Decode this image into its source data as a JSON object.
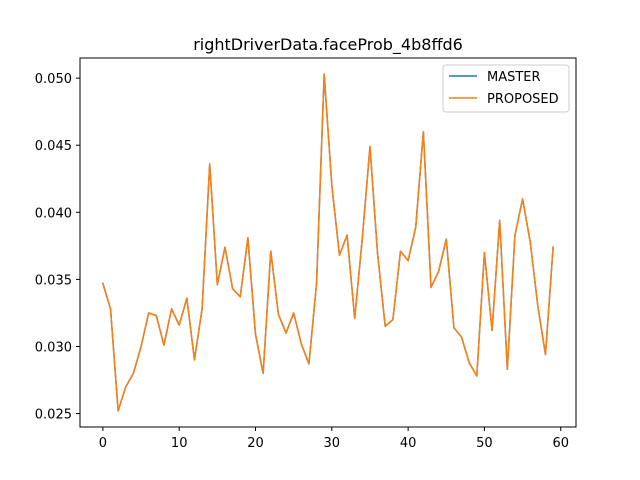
{
  "chart_data": {
    "type": "line",
    "title": "rightDriverData.faceProb_4b8ffd6",
    "xlabel": "",
    "ylabel": "",
    "xlim": [
      -3.0,
      62.0
    ],
    "ylim": [
      0.024,
      0.0515
    ],
    "xticks": [
      0,
      10,
      20,
      30,
      40,
      50,
      60
    ],
    "yticks": [
      0.025,
      0.03,
      0.035,
      0.04,
      0.045,
      0.05
    ],
    "xtick_labels": [
      "0",
      "10",
      "20",
      "30",
      "40",
      "50",
      "60"
    ],
    "ytick_labels": [
      "0.025",
      "0.030",
      "0.035",
      "0.040",
      "0.045",
      "0.050"
    ],
    "grid": false,
    "legend_position": "upper right",
    "x": [
      0,
      1,
      2,
      3,
      4,
      5,
      6,
      7,
      8,
      9,
      10,
      11,
      12,
      13,
      14,
      15,
      16,
      17,
      18,
      19,
      20,
      21,
      22,
      23,
      24,
      25,
      26,
      27,
      28,
      29,
      30,
      31,
      32,
      33,
      34,
      35,
      36,
      37,
      38,
      39,
      40,
      41,
      42,
      43,
      44,
      45,
      46,
      47,
      48,
      49,
      50,
      51,
      52,
      53,
      54,
      55,
      56,
      57,
      58,
      59
    ],
    "series": [
      {
        "name": "MASTER",
        "color": "#1f77b4",
        "values": [
          0.0347,
          0.0328,
          0.0252,
          0.027,
          0.028,
          0.03,
          0.0325,
          0.0323,
          0.0301,
          0.0328,
          0.0316,
          0.0336,
          0.029,
          0.0328,
          0.0436,
          0.0346,
          0.0374,
          0.0343,
          0.0337,
          0.0381,
          0.0309,
          0.028,
          0.0371,
          0.0324,
          0.031,
          0.0325,
          0.0302,
          0.0287,
          0.0347,
          0.0503,
          0.042,
          0.0368,
          0.0383,
          0.0321,
          0.0381,
          0.0449,
          0.0369,
          0.0315,
          0.032,
          0.0371,
          0.0364,
          0.0389,
          0.046,
          0.0344,
          0.0356,
          0.038,
          0.0314,
          0.0307,
          0.0288,
          0.0278,
          0.037,
          0.0312,
          0.0394,
          0.0283,
          0.0383,
          0.041,
          0.0378,
          0.033,
          0.0294,
          0.0374
        ]
      },
      {
        "name": "PROPOSED",
        "color": "#ff7f0e",
        "values": [
          0.0347,
          0.0328,
          0.0252,
          0.027,
          0.028,
          0.03,
          0.0325,
          0.0323,
          0.0301,
          0.0328,
          0.0316,
          0.0336,
          0.029,
          0.0328,
          0.0436,
          0.0346,
          0.0374,
          0.0343,
          0.0337,
          0.0381,
          0.0309,
          0.028,
          0.0371,
          0.0324,
          0.031,
          0.0325,
          0.0302,
          0.0287,
          0.0347,
          0.0503,
          0.042,
          0.0368,
          0.0383,
          0.0321,
          0.0381,
          0.0449,
          0.0369,
          0.0315,
          0.032,
          0.0371,
          0.0364,
          0.0389,
          0.046,
          0.0344,
          0.0356,
          0.038,
          0.0314,
          0.0307,
          0.0288,
          0.0278,
          0.037,
          0.0312,
          0.0394,
          0.0283,
          0.0383,
          0.041,
          0.0378,
          0.033,
          0.0294,
          0.0374
        ]
      }
    ]
  }
}
